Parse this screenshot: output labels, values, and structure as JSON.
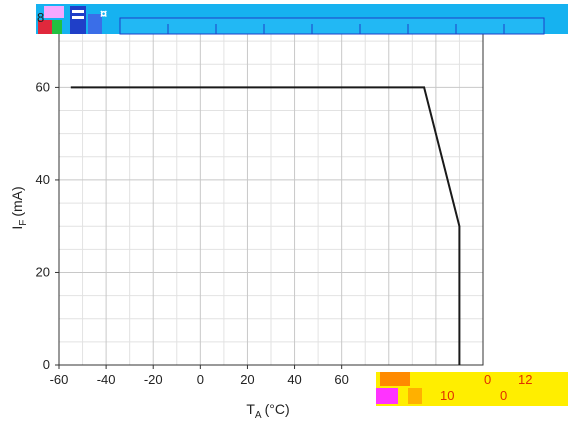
{
  "chart_data": {
    "type": "line",
    "title": "",
    "xlabel": "T",
    "xlabel_sub": "A",
    "xlabel_unit": "(°C)",
    "ylabel": "I",
    "ylabel_sub": "F",
    "ylabel_unit": "(mA)",
    "xlim": [
      -60,
      120
    ],
    "ylim": [
      0,
      75
    ],
    "grid": true,
    "x_tick_labels": [
      "-60",
      "-40",
      "-20",
      "0",
      "20",
      "40",
      "60"
    ],
    "x_ticks": [
      -60,
      -40,
      -20,
      0,
      20,
      40,
      60
    ],
    "y_tick_labels": [
      "0",
      "20",
      "40",
      "60"
    ],
    "y_ticks": [
      0,
      20,
      40,
      60
    ],
    "series": [
      {
        "x": [
          -55,
          95,
          110,
          110
        ],
        "y": [
          60,
          60,
          30,
          0
        ]
      }
    ]
  },
  "overlay": {
    "top_left_fragment": "8",
    "bottom_fragments": [
      "0",
      "12",
      "10",
      "0"
    ]
  },
  "colors": {
    "line": "#1a1a1a",
    "grid_major": "#c8c8c8",
    "grid_minor": "#e2e2e2",
    "axis": "#333333",
    "banner_blue": "#16b2f0",
    "banner_dark": "#1f3fc8",
    "banner_yellow": "#ffee00",
    "banner_orange": "#ff8a00",
    "banner_magenta": "#ff33ff",
    "banner_red_text": "#e03000"
  }
}
